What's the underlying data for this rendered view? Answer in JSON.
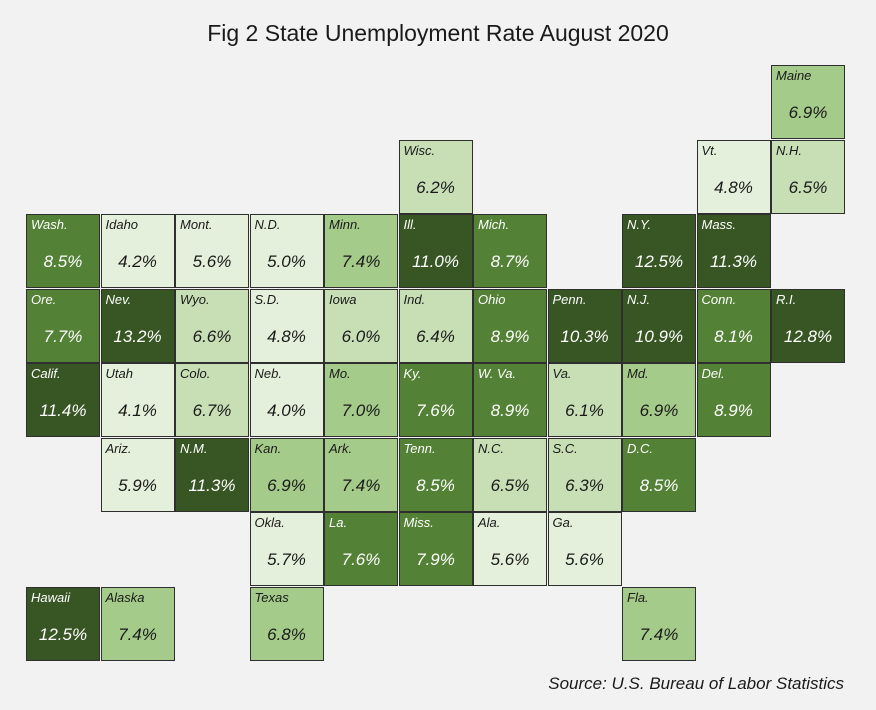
{
  "title": "Fig 2 State Unemployment Rate August 2020",
  "source": "Source: U.S. Bureau of Labor Statistics",
  "colors": {
    "background": "#f2f2f2",
    "scale": [
      {
        "min": 0.0,
        "fill": "#e4f0db",
        "text": "#1a1a1a"
      },
      {
        "min": 6.0,
        "fill": "#c8dfb6",
        "text": "#1a1a1a"
      },
      {
        "min": 6.8,
        "fill": "#a5cb8a",
        "text": "#1a1a1a"
      },
      {
        "min": 7.6,
        "fill": "#538135",
        "text": "#ffffff"
      },
      {
        "min": 9.5,
        "fill": "#375623",
        "text": "#ffffff"
      }
    ]
  },
  "chart_data": {
    "type": "heatmap",
    "title": "Fig 2 State Unemployment Rate August 2020",
    "unit": "%",
    "tiles": [
      {
        "label": "Maine",
        "value": 6.9,
        "row": 0,
        "col": 10
      },
      {
        "label": "Wisc.",
        "value": 6.2,
        "row": 1,
        "col": 5
      },
      {
        "label": "Vt.",
        "value": 4.8,
        "row": 1,
        "col": 9
      },
      {
        "label": "N.H.",
        "value": 6.5,
        "row": 1,
        "col": 10
      },
      {
        "label": "Wash.",
        "value": 8.5,
        "row": 2,
        "col": 0
      },
      {
        "label": "Idaho",
        "value": 4.2,
        "row": 2,
        "col": 1
      },
      {
        "label": "Mont.",
        "value": 5.6,
        "row": 2,
        "col": 2
      },
      {
        "label": "N.D.",
        "value": 5.0,
        "row": 2,
        "col": 3
      },
      {
        "label": "Minn.",
        "value": 7.4,
        "row": 2,
        "col": 4
      },
      {
        "label": "Ill.",
        "value": 11.0,
        "row": 2,
        "col": 5
      },
      {
        "label": "Mich.",
        "value": 8.7,
        "row": 2,
        "col": 6
      },
      {
        "label": "N.Y.",
        "value": 12.5,
        "row": 2,
        "col": 8
      },
      {
        "label": "Mass.",
        "value": 11.3,
        "row": 2,
        "col": 9
      },
      {
        "label": "Ore.",
        "value": 7.7,
        "row": 3,
        "col": 0
      },
      {
        "label": "Nev.",
        "value": 13.2,
        "row": 3,
        "col": 1
      },
      {
        "label": "Wyo.",
        "value": 6.6,
        "row": 3,
        "col": 2
      },
      {
        "label": "S.D.",
        "value": 4.8,
        "row": 3,
        "col": 3
      },
      {
        "label": "Iowa",
        "value": 6.0,
        "row": 3,
        "col": 4
      },
      {
        "label": "Ind.",
        "value": 6.4,
        "row": 3,
        "col": 5
      },
      {
        "label": "Ohio",
        "value": 8.9,
        "row": 3,
        "col": 6
      },
      {
        "label": "Penn.",
        "value": 10.3,
        "row": 3,
        "col": 7
      },
      {
        "label": "N.J.",
        "value": 10.9,
        "row": 3,
        "col": 8
      },
      {
        "label": "Conn.",
        "value": 8.1,
        "row": 3,
        "col": 9
      },
      {
        "label": "R.I.",
        "value": 12.8,
        "row": 3,
        "col": 10
      },
      {
        "label": "Calif.",
        "value": 11.4,
        "row": 4,
        "col": 0
      },
      {
        "label": "Utah",
        "value": 4.1,
        "row": 4,
        "col": 1
      },
      {
        "label": "Colo.",
        "value": 6.7,
        "row": 4,
        "col": 2
      },
      {
        "label": "Neb.",
        "value": 4.0,
        "row": 4,
        "col": 3
      },
      {
        "label": "Mo.",
        "value": 7.0,
        "row": 4,
        "col": 4
      },
      {
        "label": "Ky.",
        "value": 7.6,
        "row": 4,
        "col": 5
      },
      {
        "label": "W. Va.",
        "value": 8.9,
        "row": 4,
        "col": 6
      },
      {
        "label": "Va.",
        "value": 6.1,
        "row": 4,
        "col": 7
      },
      {
        "label": "Md.",
        "value": 6.9,
        "row": 4,
        "col": 8
      },
      {
        "label": "Del.",
        "value": 8.9,
        "row": 4,
        "col": 9
      },
      {
        "label": "Ariz.",
        "value": 5.9,
        "row": 5,
        "col": 1
      },
      {
        "label": "N.M.",
        "value": 11.3,
        "row": 5,
        "col": 2
      },
      {
        "label": "Kan.",
        "value": 6.9,
        "row": 5,
        "col": 3
      },
      {
        "label": "Ark.",
        "value": 7.4,
        "row": 5,
        "col": 4
      },
      {
        "label": "Tenn.",
        "value": 8.5,
        "row": 5,
        "col": 5
      },
      {
        "label": "N.C.",
        "value": 6.5,
        "row": 5,
        "col": 6
      },
      {
        "label": "S.C.",
        "value": 6.3,
        "row": 5,
        "col": 7
      },
      {
        "label": "D.C.",
        "value": 8.5,
        "row": 5,
        "col": 8
      },
      {
        "label": "Okla.",
        "value": 5.7,
        "row": 6,
        "col": 3
      },
      {
        "label": "La.",
        "value": 7.6,
        "row": 6,
        "col": 4
      },
      {
        "label": "Miss.",
        "value": 7.9,
        "row": 6,
        "col": 5
      },
      {
        "label": "Ala.",
        "value": 5.6,
        "row": 6,
        "col": 6
      },
      {
        "label": "Ga.",
        "value": 5.6,
        "row": 6,
        "col": 7
      },
      {
        "label": "Hawaii",
        "value": 12.5,
        "row": 7,
        "col": 0
      },
      {
        "label": "Alaska",
        "value": 7.4,
        "row": 7,
        "col": 1
      },
      {
        "label": "Texas",
        "value": 6.8,
        "row": 7,
        "col": 3
      },
      {
        "label": "Fla.",
        "value": 7.4,
        "row": 7,
        "col": 8
      }
    ]
  }
}
